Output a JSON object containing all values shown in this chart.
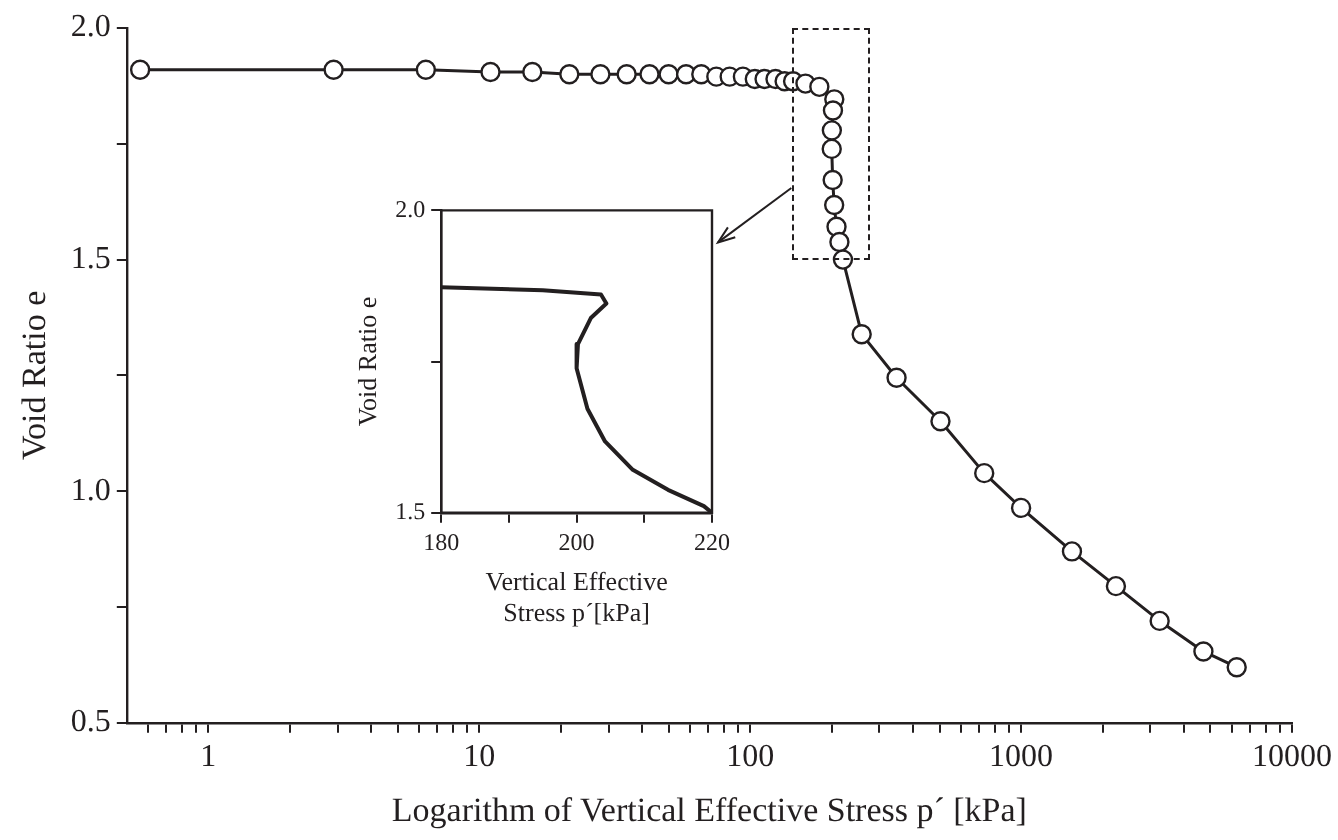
{
  "chart_data": [
    {
      "type": "line",
      "xlabel": "Logarithm of Vertical Effective Stress p´ [kPa]",
      "ylabel": "Void Ratio e",
      "log": "x",
      "marker": "circle",
      "line_style": "solid",
      "grid": false,
      "legend": false,
      "xlim": [
        0.5,
        10000
      ],
      "ylim": [
        0.5,
        2.0
      ],
      "xticks": [
        {
          "value": 0.6,
          "label": null
        },
        {
          "value": 0.7,
          "label": null
        },
        {
          "value": 0.8,
          "label": null
        },
        {
          "value": 0.9,
          "label": null
        },
        1,
        {
          "value": 2,
          "label": null
        },
        {
          "value": 3,
          "label": null
        },
        {
          "value": 4,
          "label": null
        },
        {
          "value": 5,
          "label": null
        },
        {
          "value": 6,
          "label": null
        },
        {
          "value": 7,
          "label": null
        },
        {
          "value": 8,
          "label": null
        },
        {
          "value": 9,
          "label": null
        },
        10,
        {
          "value": 20,
          "label": null
        },
        {
          "value": 30,
          "label": null
        },
        {
          "value": 40,
          "label": null
        },
        {
          "value": 50,
          "label": null
        },
        {
          "value": 60,
          "label": null
        },
        {
          "value": 70,
          "label": null
        },
        {
          "value": 80,
          "label": null
        },
        {
          "value": 90,
          "label": null
        },
        100,
        {
          "value": 200,
          "label": null
        },
        {
          "value": 300,
          "label": null
        },
        {
          "value": 400,
          "label": null
        },
        {
          "value": 500,
          "label": null
        },
        {
          "value": 600,
          "label": null
        },
        {
          "value": 700,
          "label": null
        },
        {
          "value": 800,
          "label": null
        },
        {
          "value": 900,
          "label": null
        },
        1000,
        {
          "value": 2000,
          "label": null
        },
        {
          "value": 3000,
          "label": null
        },
        {
          "value": 4000,
          "label": null
        },
        {
          "value": 5000,
          "label": null
        },
        {
          "value": 6000,
          "label": null
        },
        {
          "value": 7000,
          "label": null
        },
        {
          "value": 8000,
          "label": null
        },
        {
          "value": 9000,
          "label": null
        },
        10000
      ],
      "yticks": [
        {
          "value": 0.5,
          "label": "0.5"
        },
        {
          "value": 0.75,
          "label": null
        },
        {
          "value": 1.0,
          "label": "1.0"
        },
        {
          "value": 1.25,
          "label": null
        },
        {
          "value": 1.5,
          "label": "1.5"
        },
        {
          "value": 1.75,
          "label": null
        },
        {
          "value": 2.0,
          "label": "2.0"
        }
      ],
      "series": [
        {
          "color": "#231f20",
          "x": [
            0.56,
            2.9,
            6.35,
            11,
            15.7,
            21.5,
            28,
            35,
            42.5,
            50,
            58,
            66,
            75,
            84,
            94,
            104,
            113,
            124,
            134,
            144,
            160,
            180,
            204.4,
            202.1,
            200.2,
            200,
            201.6,
            204.2,
            208.3,
            213.5,
            220,
            258,
            347,
            504,
            731,
            1000,
            1541,
            2239,
            3247,
            4710,
            6250
          ],
          "values": [
            1.91,
            1.91,
            1.91,
            1.905,
            1.905,
            1.9,
            1.9,
            1.9,
            1.9,
            1.9,
            1.9,
            1.9,
            1.895,
            1.895,
            1.895,
            1.89,
            1.89,
            1.89,
            1.885,
            1.885,
            1.88,
            1.873,
            1.846,
            1.822,
            1.779,
            1.739,
            1.672,
            1.618,
            1.571,
            1.538,
            1.5,
            1.339,
            1.245,
            1.151,
            1.039,
            0.964,
            0.87,
            0.795,
            0.72,
            0.654,
            0.62
          ]
        }
      ]
    },
    {
      "type": "line",
      "xlabel": "Vertical Effective Stress p´[kPa]",
      "ylabel": "Void Ratio e",
      "marker": "none",
      "line_style": "solid",
      "grid": false,
      "legend": false,
      "xlim": [
        180,
        220
      ],
      "ylim": [
        1.5,
        2.0
      ],
      "xticks": [
        180,
        {
          "value": 190,
          "label": null
        },
        200,
        {
          "value": 210,
          "label": null
        },
        220
      ],
      "yticks": [
        {
          "value": 1.5,
          "label": "1.5"
        },
        {
          "value": 1.75,
          "label": null
        },
        {
          "value": 2.0,
          "label": "2.0"
        }
      ],
      "series": [
        {
          "color": "#231f20",
          "x": [
            180,
            195,
            203.6,
            204.4,
            202.1,
            200.2,
            200,
            201.6,
            204.2,
            208.3,
            213.5,
            218.8,
            220
          ],
          "values": [
            1.873,
            1.868,
            1.861,
            1.846,
            1.822,
            1.779,
            1.739,
            1.672,
            1.618,
            1.571,
            1.538,
            1.511,
            1.5
          ]
        }
      ]
    }
  ]
}
